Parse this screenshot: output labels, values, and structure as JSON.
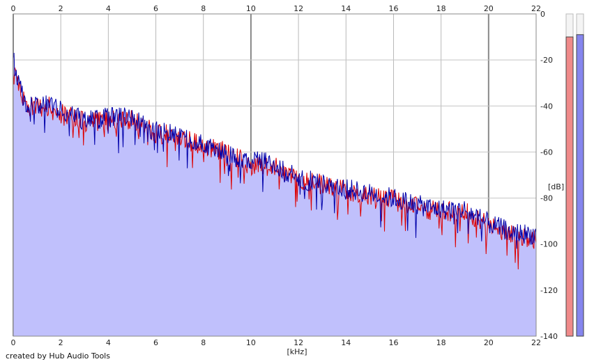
{
  "chart_data": {
    "type": "area",
    "xlabel": "[kHz]",
    "ylabel": "[dB]",
    "xlim": [
      0,
      22
    ],
    "ylim": [
      -140,
      0
    ],
    "x_ticks": [
      0,
      2,
      4,
      6,
      8,
      10,
      12,
      14,
      16,
      18,
      20,
      22
    ],
    "y_ticks": [
      0,
      -20,
      -40,
      -60,
      -80,
      -100,
      -120,
      -140
    ],
    "grid": true,
    "credit": "created by Hub Audio Tools",
    "series": [
      {
        "color": "#dd0000",
        "x": [
          0,
          0.25,
          0.5,
          1,
          1.5,
          2,
          3,
          4,
          5,
          6,
          7,
          8,
          9,
          10,
          11,
          12,
          13,
          14,
          15,
          16,
          17,
          18,
          19,
          20,
          21,
          22
        ],
        "values": [
          -22,
          -30,
          -40,
          -41,
          -40,
          -43,
          -47,
          -46,
          -46,
          -52,
          -53,
          -58,
          -60,
          -66,
          -66,
          -72,
          -74,
          -77,
          -79,
          -81,
          -84,
          -86,
          -86,
          -92,
          -96,
          -98
        ]
      },
      {
        "color": "#0000aa",
        "x": [
          0,
          0.25,
          0.5,
          1,
          1.5,
          2,
          3,
          4,
          5,
          6,
          7,
          8,
          9,
          10,
          11,
          12,
          13,
          14,
          15,
          16,
          17,
          18,
          19,
          20,
          21,
          22
        ],
        "values": [
          -20,
          -30,
          -40,
          -40,
          -39,
          -42,
          -46,
          -45,
          -45,
          -51,
          -53,
          -57,
          -61,
          -64,
          -65,
          -72,
          -73,
          -76,
          -78,
          -80,
          -83,
          -85,
          -85,
          -91,
          -95,
          -96
        ]
      }
    ],
    "meters": [
      {
        "color": "#f08a8a",
        "value": -10
      },
      {
        "color": "#8585ee",
        "value": -9
      }
    ]
  }
}
